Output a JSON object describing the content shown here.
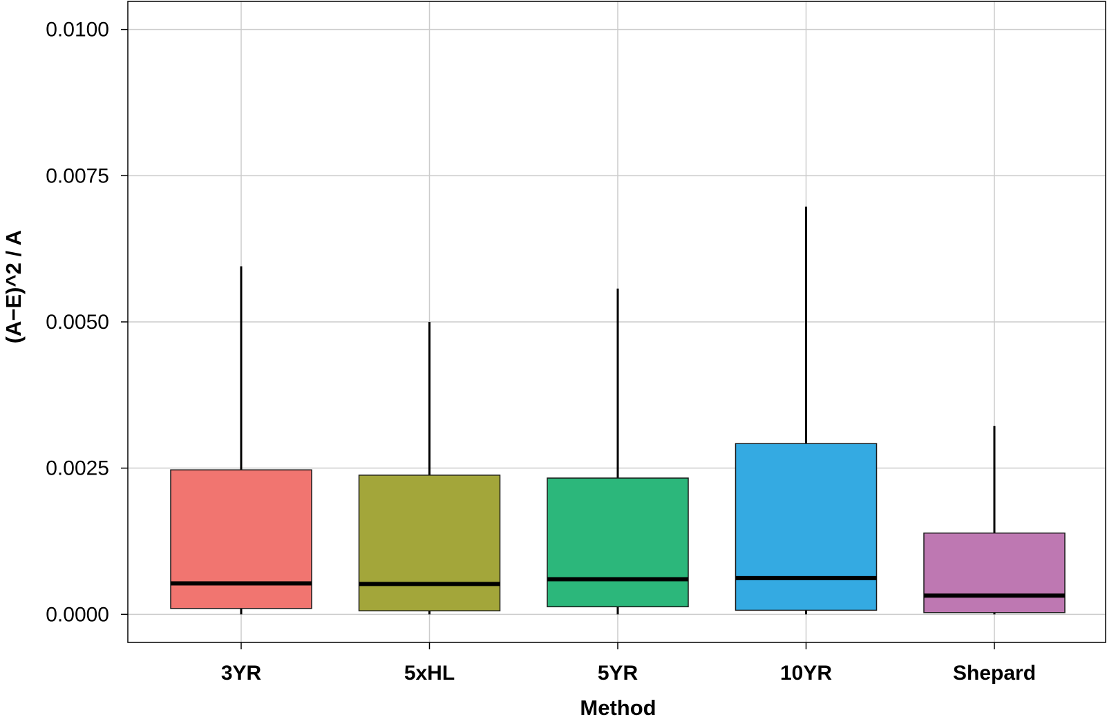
{
  "chart_data": {
    "type": "boxplot",
    "xlabel": "Method",
    "ylabel": "(A−E)^2 / A",
    "ylim": [
      -0.00048,
      0.01048
    ],
    "yticks": [
      0.0,
      0.0025,
      0.005,
      0.0075,
      0.01
    ],
    "ytick_labels": [
      "0.0000",
      "0.0025",
      "0.0050",
      "0.0075",
      "0.0100"
    ],
    "grid": true,
    "legend": "none",
    "categories": [
      "3YR",
      "5xHL",
      "5YR",
      "10YR",
      "Shepard"
    ],
    "boxes": [
      {
        "category": "3YR",
        "min": 0.0,
        "q1": 0.0001,
        "median": 0.00053,
        "q3": 0.00247,
        "max": 0.00595,
        "color": "#F17570"
      },
      {
        "category": "5xHL",
        "min": 0.0,
        "q1": 6e-05,
        "median": 0.00052,
        "q3": 0.00238,
        "max": 0.005,
        "color": "#A3A63A"
      },
      {
        "category": "5YR",
        "min": 0.0,
        "q1": 0.00013,
        "median": 0.0006,
        "q3": 0.00233,
        "max": 0.00557,
        "color": "#2CB77B"
      },
      {
        "category": "10YR",
        "min": 0.0,
        "q1": 7e-05,
        "median": 0.00062,
        "q3": 0.00292,
        "max": 0.00697,
        "color": "#34AAE2"
      },
      {
        "category": "Shepard",
        "min": 0.0,
        "q1": 3e-05,
        "median": 0.00032,
        "q3": 0.00139,
        "max": 0.00322,
        "color": "#BE78B2"
      }
    ]
  }
}
